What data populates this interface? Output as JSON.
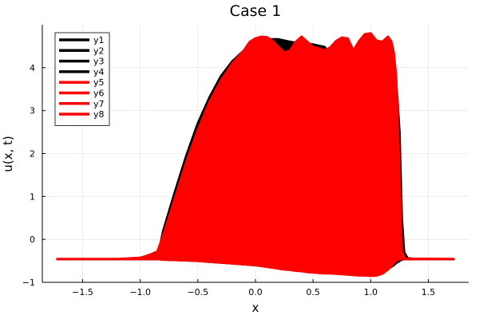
{
  "chart_data": {
    "type": "area",
    "title": "Case 1",
    "xlabel": "x",
    "ylabel": "u(x, t)",
    "xlim": [
      -1.85,
      1.85
    ],
    "ylim": [
      -1,
      5
    ],
    "xticks": [
      -1.5,
      -1.0,
      -0.5,
      0.0,
      0.5,
      1.0,
      1.5
    ],
    "xtick_labels": [
      "−1.5",
      "−1.0",
      "−0.5",
      "0.0",
      "0.5",
      "1.0",
      "1.5"
    ],
    "yticks": [
      -1,
      0,
      1,
      2,
      3,
      4
    ],
    "ytick_labels": [
      "−1",
      "0",
      "1",
      "2",
      "3",
      "4"
    ],
    "grid": true,
    "legend_position": "top-left",
    "colors": {
      "black_series": "#000000",
      "red_series": "#ff0000"
    },
    "series": [
      {
        "name": "y1",
        "color": "#000000"
      },
      {
        "name": "y2",
        "color": "#000000"
      },
      {
        "name": "y3",
        "color": "#000000"
      },
      {
        "name": "y4",
        "color": "#000000"
      },
      {
        "name": "y5",
        "color": "#ff0000"
      },
      {
        "name": "y6",
        "color": "#ff0000"
      },
      {
        "name": "y7",
        "color": "#ff0000"
      },
      {
        "name": "y8",
        "color": "#ff0000"
      }
    ],
    "black_envelope": {
      "x": [
        -1.72,
        -1.0,
        -0.9,
        -0.85,
        -0.8,
        -0.7,
        -0.6,
        -0.5,
        -0.4,
        -0.3,
        -0.2,
        -0.1,
        0.0,
        0.1,
        0.2,
        0.3,
        0.4,
        0.5,
        0.6,
        0.65,
        0.7,
        0.8,
        0.9,
        1.0,
        1.1,
        1.17,
        1.2,
        1.22,
        1.25,
        1.27,
        1.29,
        1.32,
        1.4,
        1.72
      ],
      "upper": [
        -0.46,
        -0.46,
        -0.44,
        -0.42,
        0.2,
        1.1,
        1.95,
        2.7,
        3.3,
        3.8,
        4.15,
        4.4,
        4.57,
        4.66,
        4.66,
        4.6,
        4.56,
        4.54,
        4.48,
        4.3,
        4.1,
        4.0,
        3.95,
        3.9,
        3.85,
        3.82,
        3.8,
        3.7,
        2.5,
        0.5,
        -0.3,
        -0.44,
        -0.46,
        -0.46
      ],
      "lower": [
        -0.46,
        -0.46,
        -0.46,
        -0.46,
        -0.47,
        -0.48,
        -0.49,
        -0.5,
        -0.52,
        -0.54,
        -0.56,
        -0.58,
        -0.6,
        -0.63,
        -0.66,
        -0.69,
        -0.72,
        -0.75,
        -0.78,
        -0.78,
        -0.78,
        -0.76,
        -0.74,
        -0.72,
        -0.7,
        -0.65,
        -0.6,
        -0.55,
        -0.5,
        -0.47,
        -0.46,
        -0.46,
        -0.46,
        -0.46
      ]
    },
    "red_envelope": {
      "x": [
        -1.72,
        -1.2,
        -1.0,
        -0.95,
        -0.9,
        -0.85,
        -0.8,
        -0.7,
        -0.6,
        -0.5,
        -0.4,
        -0.3,
        -0.2,
        -0.1,
        -0.05,
        0.0,
        0.05,
        0.1,
        0.15,
        0.2,
        0.25,
        0.3,
        0.35,
        0.4,
        0.45,
        0.5,
        0.55,
        0.6,
        0.65,
        0.7,
        0.75,
        0.8,
        0.85,
        0.9,
        0.95,
        1.0,
        1.05,
        1.1,
        1.15,
        1.18,
        1.2,
        1.22,
        1.24,
        1.26,
        1.27,
        1.3,
        1.72
      ],
      "upper": [
        -0.46,
        -0.46,
        -0.43,
        -0.39,
        -0.34,
        -0.28,
        0.1,
        0.95,
        1.8,
        2.55,
        3.2,
        3.7,
        4.1,
        4.4,
        4.6,
        4.68,
        4.72,
        4.71,
        4.62,
        4.48,
        4.35,
        4.4,
        4.6,
        4.72,
        4.6,
        4.48,
        4.45,
        4.4,
        4.47,
        4.62,
        4.7,
        4.68,
        4.4,
        4.62,
        4.78,
        4.8,
        4.63,
        4.6,
        4.72,
        4.6,
        4.35,
        3.8,
        2.3,
        0.6,
        -0.3,
        -0.45,
        -0.46
      ],
      "lower": [
        -0.46,
        -0.46,
        -0.46,
        -0.46,
        -0.46,
        -0.46,
        -0.47,
        -0.48,
        -0.49,
        -0.5,
        -0.52,
        -0.54,
        -0.56,
        -0.58,
        -0.59,
        -0.6,
        -0.62,
        -0.64,
        -0.66,
        -0.68,
        -0.7,
        -0.71,
        -0.73,
        -0.74,
        -0.76,
        -0.77,
        -0.78,
        -0.79,
        -0.79,
        -0.8,
        -0.81,
        -0.82,
        -0.83,
        -0.84,
        -0.84,
        -0.85,
        -0.84,
        -0.8,
        -0.7,
        -0.62,
        -0.55,
        -0.5,
        -0.47,
        -0.46,
        -0.46,
        -0.46,
        -0.46
      ]
    }
  }
}
